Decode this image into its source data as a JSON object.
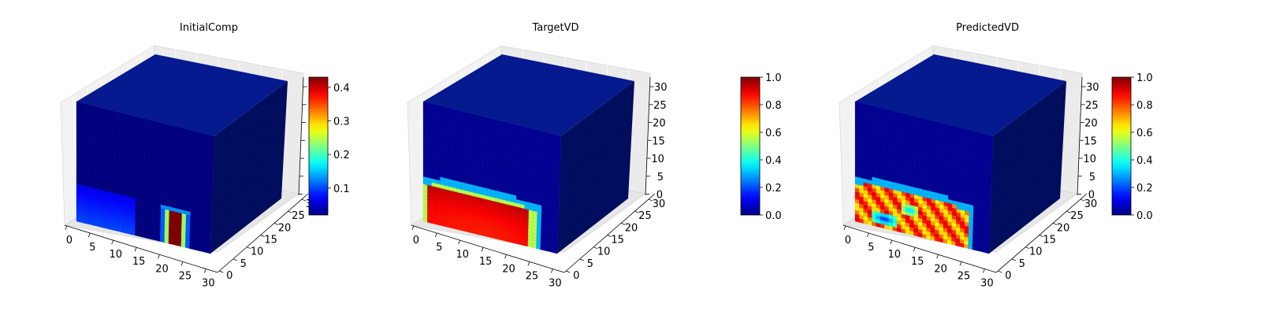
{
  "chart_data": [
    {
      "type": "heatmap",
      "title": "InitialComp",
      "xticks": [
        "0",
        "5",
        "10",
        "15",
        "20",
        "25",
        "30"
      ],
      "yticks": [
        "0",
        "5",
        "10",
        "15",
        "20",
        "25",
        "30"
      ],
      "zticks": [
        "",
        "",
        "",
        "",
        "",
        "",
        ""
      ],
      "colorbar": {
        "ticks": [
          "0.1",
          "0.2",
          "0.3",
          "0.4"
        ],
        "tick_values": [
          0.1,
          0.2,
          0.3,
          0.4
        ],
        "range": [
          0.02,
          0.43
        ],
        "cmap": "jet"
      },
      "volume_extent": [
        32,
        32,
        32
      ],
      "front_face_features": [
        {
          "shape": "vertical-bar",
          "x_range": [
            21,
            26
          ],
          "z_range": [
            0,
            9
          ],
          "value": 0.43
        },
        {
          "shape": "diffuse-glow",
          "x_range": [
            0,
            14
          ],
          "z_range": [
            0,
            10
          ],
          "value": 0.1
        }
      ],
      "background_value": 0.02
    },
    {
      "type": "heatmap",
      "title": "TargetVD",
      "xticks": [
        "0",
        "5",
        "10",
        "15",
        "20",
        "25",
        "30"
      ],
      "yticks": [
        "0",
        "5",
        "10",
        "15",
        "20",
        "25",
        "30"
      ],
      "zticks": [
        "0",
        "5",
        "10",
        "15",
        "20",
        "25",
        "30"
      ],
      "colorbar": {
        "ticks": [
          "0.0",
          "0.2",
          "0.4",
          "0.6",
          "0.8",
          "1.0"
        ],
        "tick_values": [
          0.0,
          0.2,
          0.4,
          0.6,
          0.8,
          1.0
        ],
        "range": [
          0,
          1
        ],
        "cmap": "jet"
      },
      "volume_extent": [
        32,
        32,
        32
      ],
      "front_face_features": [
        {
          "shape": "dome",
          "x_range": [
            0,
            26
          ],
          "z_range": [
            0,
            11
          ],
          "value": 0.95
        }
      ],
      "background_value": 0.02
    },
    {
      "type": "heatmap",
      "title": "PredictedVD",
      "xticks": [
        "0",
        "5",
        "10",
        "15",
        "20",
        "25",
        "30"
      ],
      "yticks": [
        "0",
        "5",
        "10",
        "15",
        "20",
        "25",
        "30"
      ],
      "zticks": [
        "0",
        "5",
        "10",
        "15",
        "20",
        "25",
        "30"
      ],
      "colorbar": {
        "ticks": [
          "0.0",
          "0.2",
          "0.4",
          "0.6",
          "0.8",
          "1.0"
        ],
        "tick_values": [
          0.0,
          0.2,
          0.4,
          0.6,
          0.8,
          1.0
        ],
        "range": [
          0,
          1
        ],
        "cmap": "jet"
      },
      "volume_extent": [
        32,
        32,
        32
      ],
      "front_face_features": [
        {
          "shape": "dome-patchy",
          "x_range": [
            0,
            26
          ],
          "z_range": [
            0,
            11
          ],
          "value": 0.9
        },
        {
          "shape": "hole",
          "x_range": [
            4,
            10
          ],
          "z_range": [
            1,
            4
          ],
          "value": 0.15
        },
        {
          "shape": "hole",
          "x_range": [
            11,
            15
          ],
          "z_range": [
            5,
            8
          ],
          "value": 0.3
        }
      ],
      "background_value": 0.02
    }
  ]
}
